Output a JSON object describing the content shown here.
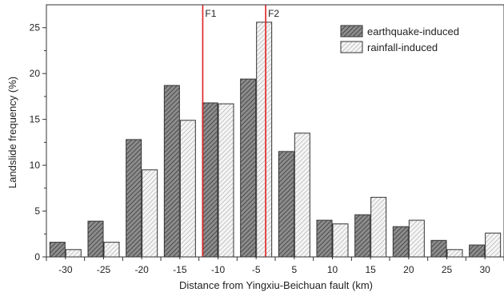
{
  "chart_data": {
    "type": "bar",
    "title": "",
    "xlabel": "Distance from Yingxiu-Beichuan fault (km)",
    "ylabel": "Landslide frequency (%)",
    "categories": [
      "-30",
      "-25",
      "-20",
      "-15",
      "-10",
      "-5",
      "5",
      "10",
      "15",
      "20",
      "25",
      "30"
    ],
    "series": [
      {
        "name": "earthquake-induced",
        "values": [
          1.6,
          3.9,
          12.8,
          18.7,
          16.8,
          19.4,
          11.5,
          4.0,
          4.6,
          3.3,
          1.8,
          1.3
        ],
        "color": "#8c8c8c",
        "hatch": "dense"
      },
      {
        "name": "rainfall-induced",
        "values": [
          0.8,
          1.6,
          9.5,
          14.9,
          16.7,
          25.6,
          13.5,
          3.6,
          6.5,
          4.0,
          0.8,
          2.6
        ],
        "color": "#f2f2f2",
        "hatch": "light"
      }
    ],
    "ylim": [
      0,
      27.5
    ],
    "yticks": [
      0,
      5,
      10,
      15,
      20,
      25
    ],
    "grid": false,
    "legend": {
      "placement": "top-right"
    },
    "fault_lines": [
      {
        "label": "F1",
        "x": -12,
        "color": "#e02020"
      },
      {
        "label": "F2",
        "x": -2.5,
        "color": "#e02020"
      }
    ]
  }
}
